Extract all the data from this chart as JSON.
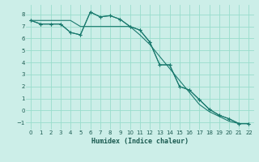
{
  "xlabel": "Humidex (Indice chaleur)",
  "bg_color": "#cceee8",
  "grid_color": "#99ddcc",
  "line_color": "#1a7a6e",
  "xlim": [
    -0.5,
    22.5
  ],
  "ylim": [
    -1.6,
    8.8
  ],
  "yticks": [
    -1,
    0,
    1,
    2,
    3,
    4,
    5,
    6,
    7,
    8
  ],
  "xticks": [
    0,
    1,
    2,
    3,
    4,
    5,
    6,
    7,
    8,
    9,
    10,
    11,
    12,
    13,
    14,
    15,
    16,
    17,
    18,
    19,
    20,
    21,
    22
  ],
  "line1_x": [
    0,
    1,
    2,
    3,
    4,
    5,
    6,
    7,
    8,
    9,
    10,
    11,
    12,
    13,
    14,
    15,
    16,
    17,
    18,
    19,
    20,
    21,
    22
  ],
  "line1_y": [
    7.5,
    7.2,
    7.2,
    7.2,
    6.5,
    6.3,
    8.2,
    7.8,
    7.9,
    7.6,
    7.0,
    6.7,
    5.7,
    3.8,
    3.8,
    2.0,
    1.7,
    0.9,
    0.1,
    -0.4,
    -0.7,
    -1.1,
    -1.1
  ],
  "line2_x": [
    0,
    1,
    2,
    3,
    4,
    5,
    6,
    7,
    8,
    9,
    10,
    11,
    12,
    13,
    14,
    15,
    16,
    17,
    18,
    19,
    20,
    21,
    22
  ],
  "line2_y": [
    7.5,
    7.5,
    7.5,
    7.5,
    7.5,
    7.0,
    7.0,
    7.0,
    7.0,
    7.0,
    7.0,
    6.3,
    5.5,
    4.5,
    3.5,
    2.5,
    1.5,
    0.5,
    -0.1,
    -0.5,
    -0.9,
    -1.1,
    -1.1
  ],
  "line3_x": [
    0,
    1,
    2,
    3,
    4,
    5,
    6,
    7,
    8,
    9,
    10,
    11,
    12,
    13,
    14,
    15,
    16,
    17,
    18,
    19,
    20,
    21,
    22
  ],
  "line3_y": [
    7.5,
    7.2,
    7.2,
    7.2,
    6.5,
    6.3,
    8.2,
    7.8,
    7.9,
    7.6,
    7.0,
    6.7,
    5.7,
    3.8,
    3.8,
    2.0,
    1.7,
    0.9,
    0.1,
    -0.4,
    -0.7,
    -1.1,
    -1.1
  ]
}
